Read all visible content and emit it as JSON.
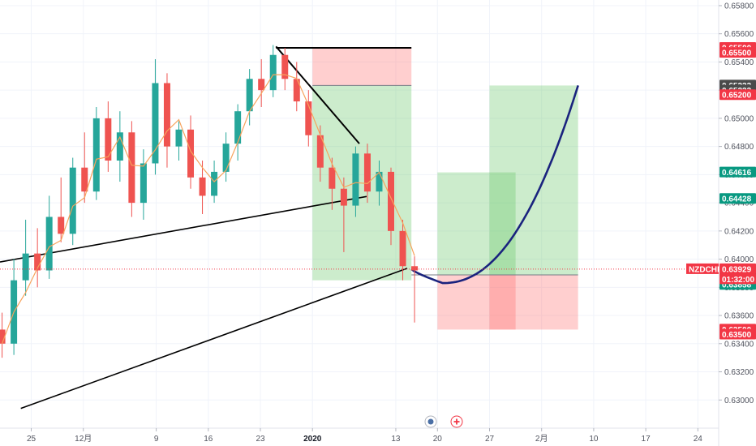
{
  "chart_data": {
    "type": "candlestick",
    "symbol": "NZDCHF",
    "y_axis": {
      "min": 0.628,
      "max": 0.6584,
      "ticks": [
        "0.65800",
        "0.65600",
        "0.65400",
        "0.65200",
        "0.65000",
        "0.64800",
        "0.64600",
        "0.64400",
        "0.64200",
        "0.64000",
        "0.63800",
        "0.63600",
        "0.63400",
        "0.63200",
        "0.63000"
      ]
    },
    "x_axis": {
      "ticks": [
        {
          "label": "25",
          "t": 2
        },
        {
          "label": "12月",
          "t": 7
        },
        {
          "label": "9",
          "t": 14
        },
        {
          "label": "16",
          "t": 19
        },
        {
          "label": "23",
          "t": 24
        },
        {
          "label": "2020",
          "t": 29,
          "bold": true
        },
        {
          "label": "13",
          "t": 37
        },
        {
          "label": "20",
          "t": 41
        },
        {
          "label": "27",
          "t": 46
        },
        {
          "label": "2月",
          "t": 51
        },
        {
          "label": "10",
          "t": 56
        },
        {
          "label": "17",
          "t": 61
        },
        {
          "label": "24",
          "t": 66
        }
      ]
    },
    "current_price": {
      "label": "NZDCHF",
      "value": "0.63929",
      "countdown": "01:32:00",
      "color": "#f23645"
    },
    "price_badges": [
      {
        "value": "0.65500",
        "price": 0.655,
        "color": "#f23645"
      },
      {
        "value": "0.65500",
        "price": 0.65465,
        "color": "#f23645"
      },
      {
        "value": "0.65233",
        "price": 0.65233,
        "color": "#4a4a4a"
      },
      {
        "value": "0.65233",
        "price": 0.65198,
        "color": "#4a4a4a"
      },
      {
        "value": "0.65200",
        "price": 0.65165,
        "color": "#f23645"
      },
      {
        "value": "0.64616",
        "price": 0.64616,
        "color": "#089981"
      },
      {
        "value": "0.64428",
        "price": 0.64428,
        "color": "#089981"
      },
      {
        "value": "0.63888",
        "price": 0.63888,
        "color": "#4a4a4a"
      },
      {
        "value": "0.63888",
        "price": 0.63853,
        "color": "#4a4a4a"
      },
      {
        "value": "0.63858",
        "price": 0.63818,
        "color": "#089981"
      },
      {
        "value": "0.63500",
        "price": 0.635,
        "color": "#f23645"
      },
      {
        "value": "0.63500",
        "price": 0.63465,
        "color": "#f23645"
      }
    ],
    "candles_ohlc": [
      [
        0.635,
        0.6362,
        0.633,
        0.634
      ],
      [
        0.634,
        0.64,
        0.6332,
        0.6385
      ],
      [
        0.6385,
        0.6428,
        0.6374,
        0.6404
      ],
      [
        0.6404,
        0.6422,
        0.638,
        0.6392
      ],
      [
        0.6392,
        0.6445,
        0.6386,
        0.643
      ],
      [
        0.643,
        0.6458,
        0.6412,
        0.6418
      ],
      [
        0.6418,
        0.6472,
        0.641,
        0.6465
      ],
      [
        0.6465,
        0.649,
        0.644,
        0.6448
      ],
      [
        0.6448,
        0.6508,
        0.6442,
        0.65
      ],
      [
        0.65,
        0.6512,
        0.6462,
        0.647
      ],
      [
        0.647,
        0.6505,
        0.6455,
        0.649
      ],
      [
        0.649,
        0.6498,
        0.643,
        0.644
      ],
      [
        0.644,
        0.6478,
        0.6428,
        0.6468
      ],
      [
        0.6468,
        0.6542,
        0.646,
        0.6525
      ],
      [
        0.6525,
        0.6532,
        0.6465,
        0.648
      ],
      [
        0.648,
        0.6498,
        0.647,
        0.6492
      ],
      [
        0.6492,
        0.6502,
        0.645,
        0.6458
      ],
      [
        0.6458,
        0.647,
        0.6432,
        0.6445
      ],
      [
        0.6445,
        0.647,
        0.644,
        0.6462
      ],
      [
        0.6462,
        0.649,
        0.6455,
        0.6482
      ],
      [
        0.6482,
        0.651,
        0.647,
        0.6505
      ],
      [
        0.6505,
        0.6535,
        0.6495,
        0.6528
      ],
      [
        0.6528,
        0.6542,
        0.6508,
        0.652
      ],
      [
        0.652,
        0.6552,
        0.6515,
        0.6545
      ],
      [
        0.6545,
        0.655,
        0.652,
        0.6528
      ],
      [
        0.6528,
        0.654,
        0.6505,
        0.6512
      ],
      [
        0.6512,
        0.652,
        0.648,
        0.6488
      ],
      [
        0.6488,
        0.6495,
        0.6455,
        0.6465
      ],
      [
        0.6465,
        0.6472,
        0.6435,
        0.645
      ],
      [
        0.645,
        0.6458,
        0.6405,
        0.6438
      ],
      [
        0.6438,
        0.648,
        0.643,
        0.6475
      ],
      [
        0.6475,
        0.6482,
        0.644,
        0.6448
      ],
      [
        0.6448,
        0.647,
        0.6438,
        0.6462
      ],
      [
        0.6462,
        0.6465,
        0.641,
        0.642
      ],
      [
        0.642,
        0.6428,
        0.6385,
        0.6395
      ],
      [
        0.6395,
        0.6402,
        0.6355,
        0.6392
      ]
    ],
    "drawings": {
      "short_position": {
        "entry": 0.65233,
        "stop": 0.655,
        "target": 0.6385
      },
      "long_position_1": {
        "entry": 0.63888,
        "stop": 0.635,
        "target": 0.64616
      },
      "long_position_2": {
        "entry": 0.63888,
        "stop": 0.635,
        "target": 0.65233
      }
    }
  },
  "toolbar": {
    "replay_icon": "replay-icon",
    "add_icon": "plus-icon"
  }
}
